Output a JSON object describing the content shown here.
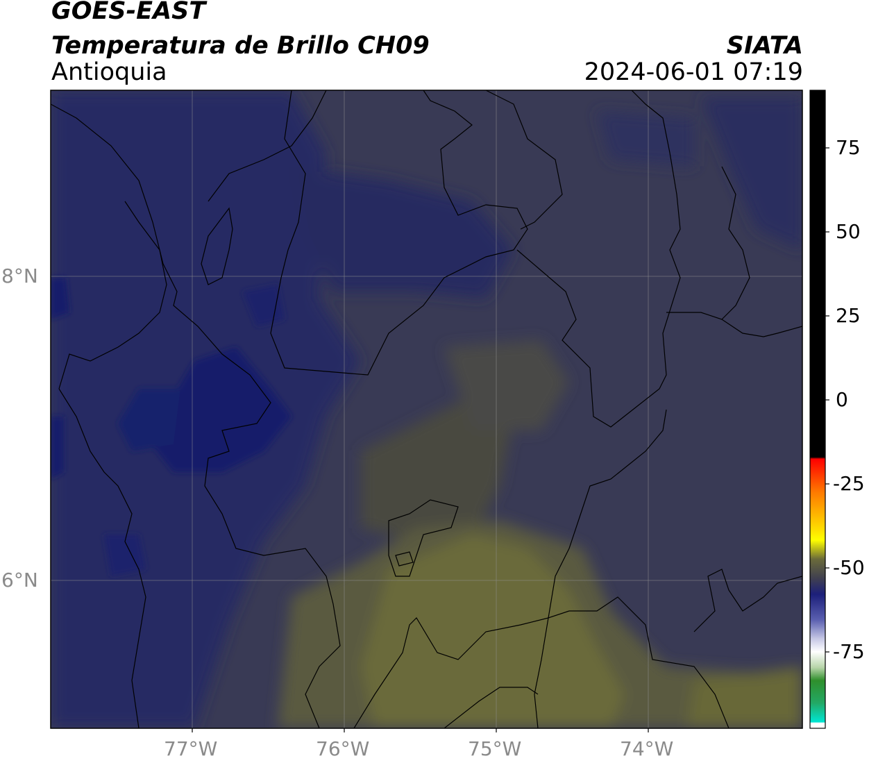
{
  "header": {
    "satellite": "GOES-EAST",
    "product": "Temperatura de Brillo CH09",
    "region": "Antioquia",
    "agency": "SIATA",
    "timestamp": "2024-06-01 07:19"
  },
  "map": {
    "extent": {
      "lon": [
        -77.95,
        -73.0
      ],
      "lat": [
        5.0,
        9.2
      ]
    },
    "lon_ticks": [
      {
        "value": -77,
        "label": "77°W"
      },
      {
        "value": -76,
        "label": "76°W"
      },
      {
        "value": -75,
        "label": "75°W"
      },
      {
        "value": -74,
        "label": "74°W"
      }
    ],
    "lat_ticks": [
      {
        "value": 8,
        "label": "8°N"
      },
      {
        "value": 6,
        "label": "6°N"
      }
    ],
    "grid": true,
    "colors": {
      "cold_blue": "#141d6b",
      "mid_blue": "#26295f",
      "slate": "#393a55",
      "olive": "#5a5a41",
      "warm_olive": "#6b6b3a"
    }
  },
  "colorbar": {
    "ticks": [
      {
        "value": 75,
        "label": "75"
      },
      {
        "value": 50,
        "label": "50"
      },
      {
        "value": 25,
        "label": "25"
      },
      {
        "value": 0,
        "label": "0"
      },
      {
        "value": -25,
        "label": "-25"
      },
      {
        "value": -50,
        "label": "-50"
      },
      {
        "value": -75,
        "label": "-75"
      }
    ],
    "range": [
      -85,
      90
    ]
  }
}
